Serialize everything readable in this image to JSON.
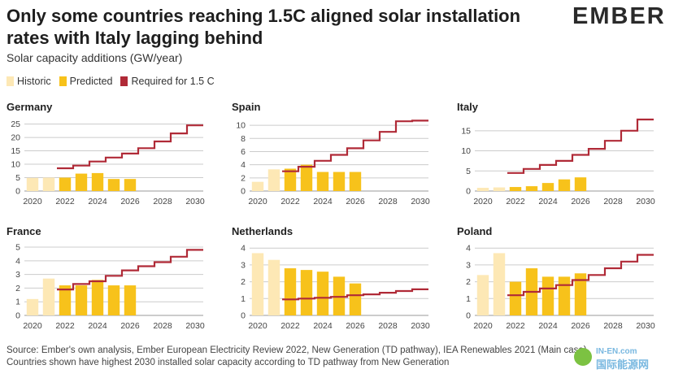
{
  "header": {
    "title": "Only some countries reaching 1.5C aligned solar installation rates with Italy lagging behind",
    "subtitle": "Solar capacity additions (GW/year)",
    "logo": "EMBER"
  },
  "legend": [
    {
      "label": "Historic",
      "color": "#fde8b5"
    },
    {
      "label": "Predicted",
      "color": "#f7c21b"
    },
    {
      "label": "Required for 1.5 C",
      "color": "#b02a37"
    }
  ],
  "footer": {
    "line1": "Source: Ember's own analysis, Ember European Electricity Review 2022, New Generation (TD pathway), IEA Renewables 2021 (Main case)",
    "line2": "Countries shown have highest 2030 installed solar capacity according to TD pathway from New Generation"
  },
  "watermark": {
    "text1": "IN-EN.com",
    "text2": "国际能源网"
  },
  "colors": {
    "historic": "#fde8b5",
    "predicted": "#f7c21b",
    "required": "#b02a37",
    "grid": "#cccccc"
  },
  "chart_data": [
    {
      "type": "bar",
      "title": "Germany",
      "x_ticks": [
        2020,
        2022,
        2024,
        2026,
        2028,
        2030
      ],
      "yticks": [
        0,
        5,
        10,
        15,
        20,
        25
      ],
      "ylim": [
        0,
        27
      ],
      "series": [
        {
          "name": "Historic",
          "x": [
            2020,
            2021
          ],
          "values": [
            4.9,
            5.0
          ]
        },
        {
          "name": "Predicted",
          "x": [
            2022,
            2023,
            2024,
            2025,
            2026
          ],
          "values": [
            5.0,
            6.5,
            6.7,
            4.5,
            4.5
          ]
        },
        {
          "name": "Required for 1.5 C",
          "x": [
            2022,
            2023,
            2024,
            2025,
            2026,
            2027,
            2028,
            2029,
            2030
          ],
          "values": [
            8.5,
            9.5,
            11.0,
            12.5,
            14.0,
            16.0,
            18.5,
            21.5,
            24.5
          ]
        }
      ]
    },
    {
      "type": "bar",
      "title": "Spain",
      "x_ticks": [
        2020,
        2022,
        2024,
        2026,
        2028,
        2030
      ],
      "yticks": [
        0,
        2,
        4,
        6,
        8,
        10
      ],
      "ylim": [
        0,
        11
      ],
      "series": [
        {
          "name": "Historic",
          "x": [
            2020,
            2021
          ],
          "values": [
            1.4,
            3.3
          ]
        },
        {
          "name": "Predicted",
          "x": [
            2022,
            2023,
            2024,
            2025,
            2026
          ],
          "values": [
            3.4,
            4.0,
            2.9,
            2.9,
            2.9
          ]
        },
        {
          "name": "Required for 1.5 C",
          "x": [
            2022,
            2023,
            2024,
            2025,
            2026,
            2027,
            2028,
            2029,
            2030
          ],
          "values": [
            3.0,
            3.7,
            4.6,
            5.5,
            6.5,
            7.7,
            9.0,
            10.6,
            10.7
          ]
        }
      ]
    },
    {
      "type": "bar",
      "title": "Italy",
      "x_ticks": [
        2020,
        2022,
        2024,
        2026,
        2028,
        2030
      ],
      "yticks": [
        0,
        5,
        10,
        15
      ],
      "ylim": [
        0,
        18
      ],
      "series": [
        {
          "name": "Historic",
          "x": [
            2020,
            2021
          ],
          "values": [
            0.8,
            0.9
          ]
        },
        {
          "name": "Predicted",
          "x": [
            2022,
            2023,
            2024,
            2025,
            2026
          ],
          "values": [
            1.0,
            1.2,
            2.0,
            2.9,
            3.4
          ]
        },
        {
          "name": "Required for 1.5 C",
          "x": [
            2022,
            2023,
            2024,
            2025,
            2026,
            2027,
            2028,
            2029,
            2030
          ],
          "values": [
            4.5,
            5.5,
            6.5,
            7.5,
            9.0,
            10.5,
            12.5,
            15.0,
            17.8
          ]
        }
      ]
    },
    {
      "type": "bar",
      "title": "France",
      "x_ticks": [
        2020,
        2022,
        2024,
        2026,
        2028,
        2030
      ],
      "yticks": [
        0,
        1,
        2,
        3,
        4,
        5
      ],
      "ylim": [
        0,
        5.3
      ],
      "series": [
        {
          "name": "Historic",
          "x": [
            2020,
            2021
          ],
          "values": [
            1.2,
            2.7
          ]
        },
        {
          "name": "Predicted",
          "x": [
            2022,
            2023,
            2024,
            2025,
            2026
          ],
          "values": [
            2.2,
            2.2,
            2.6,
            2.2,
            2.2
          ]
        },
        {
          "name": "Required for 1.5 C",
          "x": [
            2022,
            2023,
            2024,
            2025,
            2026,
            2027,
            2028,
            2029,
            2030
          ],
          "values": [
            1.9,
            2.3,
            2.5,
            2.9,
            3.3,
            3.6,
            3.9,
            4.3,
            4.8
          ]
        }
      ]
    },
    {
      "type": "bar",
      "title": "Netherlands",
      "x_ticks": [
        2020,
        2022,
        2024,
        2026,
        2028,
        2030
      ],
      "yticks": [
        0,
        1,
        2,
        3,
        4
      ],
      "ylim": [
        0,
        4.3
      ],
      "series": [
        {
          "name": "Historic",
          "x": [
            2020,
            2021
          ],
          "values": [
            3.7,
            3.3
          ]
        },
        {
          "name": "Predicted",
          "x": [
            2022,
            2023,
            2024,
            2025,
            2026
          ],
          "values": [
            2.8,
            2.7,
            2.6,
            2.3,
            1.9
          ]
        },
        {
          "name": "Required for 1.5 C",
          "x": [
            2022,
            2023,
            2024,
            2025,
            2026,
            2027,
            2028,
            2029,
            2030
          ],
          "values": [
            0.95,
            1.0,
            1.05,
            1.1,
            1.2,
            1.25,
            1.35,
            1.45,
            1.55
          ]
        }
      ]
    },
    {
      "type": "bar",
      "title": "Poland",
      "x_ticks": [
        2020,
        2022,
        2024,
        2026,
        2028,
        2030
      ],
      "yticks": [
        0,
        1,
        2,
        3,
        4
      ],
      "ylim": [
        0,
        4.3
      ],
      "series": [
        {
          "name": "Historic",
          "x": [
            2020,
            2021
          ],
          "values": [
            2.4,
            3.7
          ]
        },
        {
          "name": "Predicted",
          "x": [
            2022,
            2023,
            2024,
            2025,
            2026
          ],
          "values": [
            2.0,
            2.8,
            2.3,
            2.3,
            2.5
          ]
        },
        {
          "name": "Required for 1.5 C",
          "x": [
            2022,
            2023,
            2024,
            2025,
            2026,
            2027,
            2028,
            2029,
            2030
          ],
          "values": [
            1.2,
            1.4,
            1.6,
            1.8,
            2.1,
            2.4,
            2.8,
            3.2,
            3.6
          ]
        }
      ]
    }
  ]
}
